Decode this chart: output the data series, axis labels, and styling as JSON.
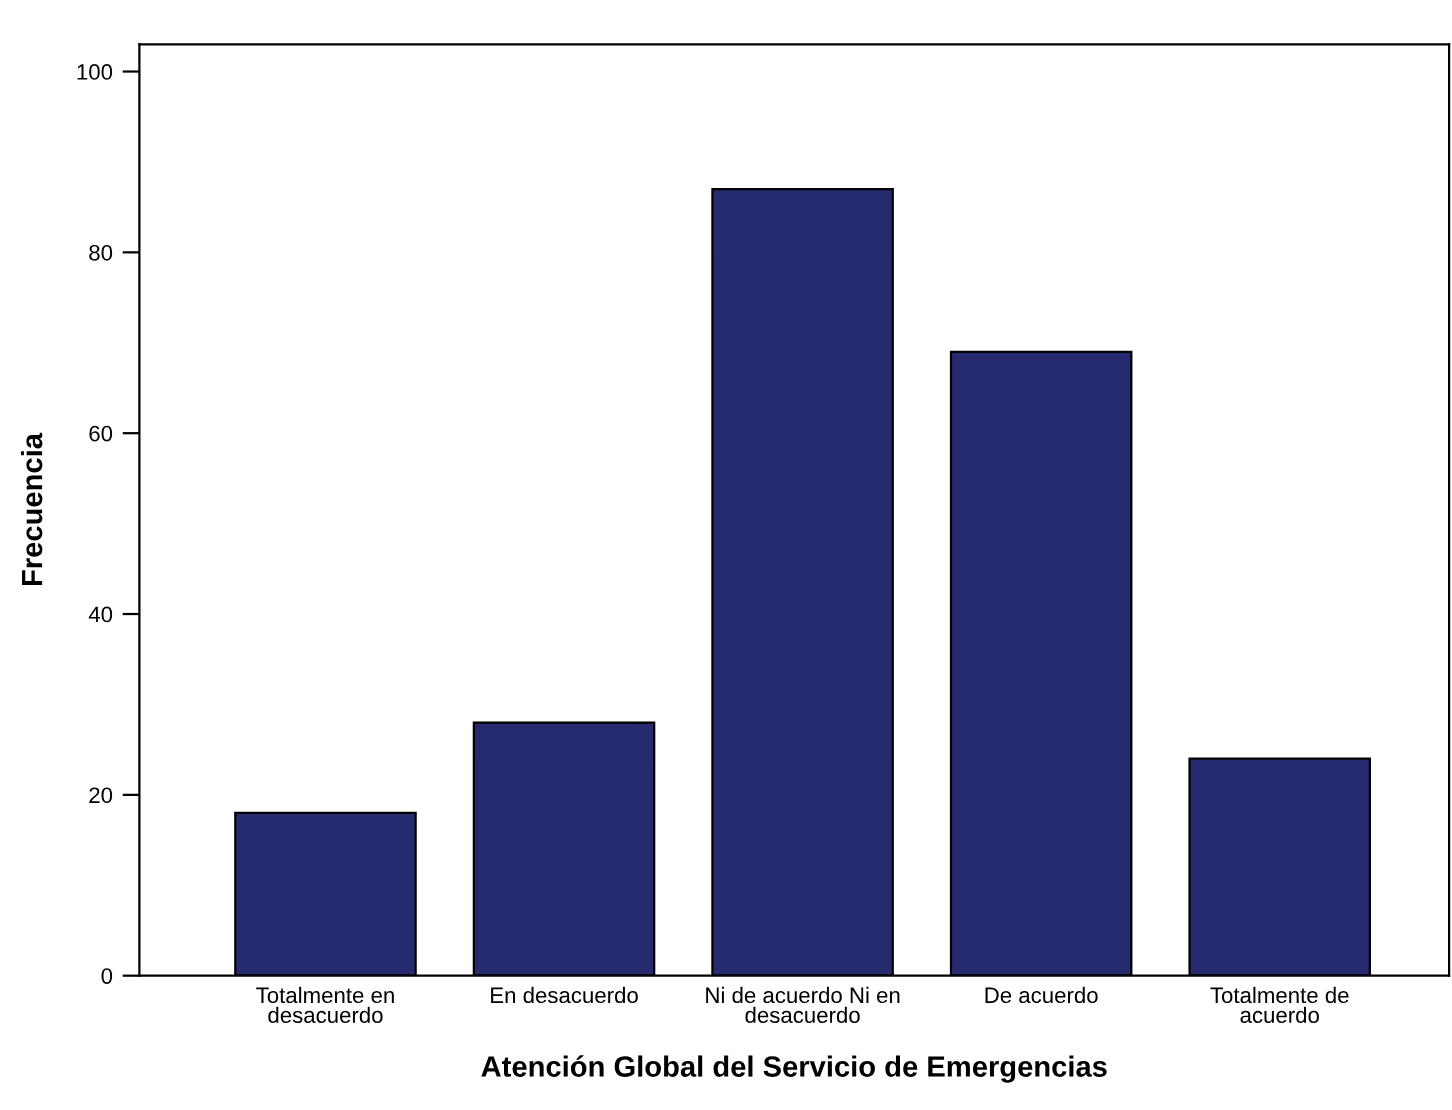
{
  "chart_data": {
    "type": "bar",
    "xlabel": "Atención Global del Servicio de Emergencias",
    "ylabel": "Frecuencia",
    "categories": [
      "Totalmente en\ndesacuerdo",
      "En desacuerdo",
      "Ni de acuerdo Ni en\ndesacuerdo",
      "De acuerdo",
      "Totalmente de\nacuerdo"
    ],
    "values": [
      18,
      28,
      87,
      69,
      24
    ],
    "color": "#262a6e",
    "ylim": [
      0,
      103
    ],
    "yticks": [
      0,
      20,
      40,
      60,
      80,
      100
    ],
    "grid": false,
    "legend": false
  }
}
